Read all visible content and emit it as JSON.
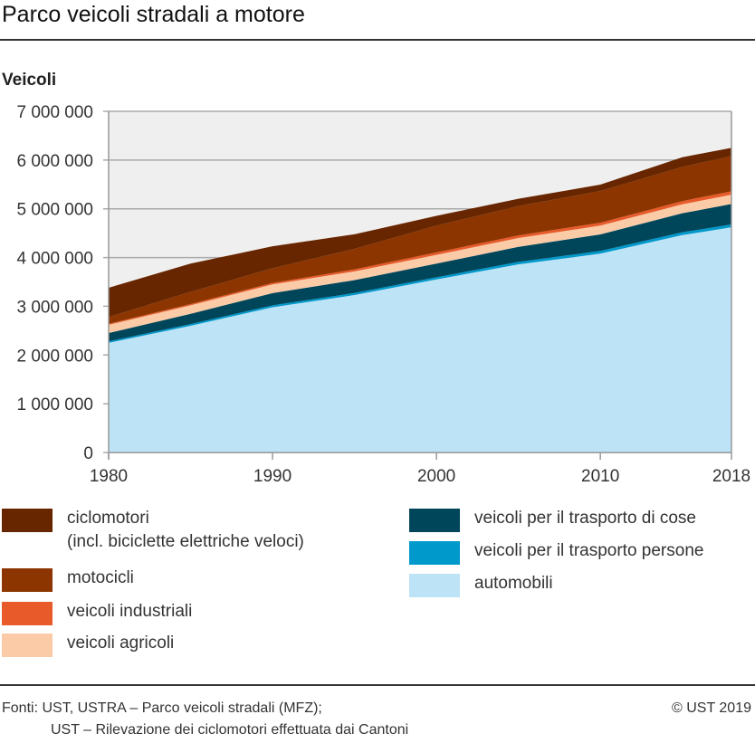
{
  "chart_data": {
    "type": "area",
    "stacked": true,
    "title": "Parco veicoli stradali a motore",
    "ylabel": "Veicoli",
    "xlabel": "",
    "ylim": [
      0,
      7000000
    ],
    "xlim": [
      1980,
      2018
    ],
    "yticks": [
      "0",
      "1 000 000",
      "2 000 000",
      "3 000 000",
      "4 000 000",
      "5 000 000",
      "6 000 000",
      "7 000 000"
    ],
    "xticks": [
      "1980",
      "1990",
      "2000",
      "2010",
      "2018"
    ],
    "grid": true,
    "x": [
      1980,
      1985,
      1990,
      1995,
      2000,
      2005,
      2010,
      2015,
      2018
    ],
    "series": [
      {
        "name": "automobili",
        "color": "#bde3f7",
        "values": [
          2250000,
          2600000,
          2980000,
          3230000,
          3550000,
          3860000,
          4080000,
          4460000,
          4620000
        ]
      },
      {
        "name": "veicoli per il trasporto persone",
        "color": "#0099cc",
        "values": [
          30000,
          35000,
          40000,
          42000,
          45000,
          50000,
          55000,
          58000,
          60000
        ]
      },
      {
        "name": "veicoli per il trasporto di cose",
        "color": "#00465a",
        "values": [
          170000,
          210000,
          250000,
          265000,
          280000,
          310000,
          340000,
          390000,
          420000
        ]
      },
      {
        "name": "veicoli agricoli",
        "color": "#fbcaa6",
        "values": [
          170000,
          175000,
          180000,
          180000,
          180000,
          180000,
          180000,
          185000,
          190000
        ]
      },
      {
        "name": "veicoli industriali",
        "color": "#e85a2a",
        "values": [
          20000,
          25000,
          30000,
          40000,
          50000,
          55000,
          60000,
          65000,
          70000
        ]
      },
      {
        "name": "motocicli",
        "color": "#8c3500",
        "values": [
          140000,
          250000,
          300000,
          420000,
          550000,
          600000,
          650000,
          700000,
          720000
        ]
      },
      {
        "name": "ciclomotori",
        "sublabel": "(incl. biciclette elettriche veloci)",
        "color": "#672600",
        "values": [
          600000,
          580000,
          450000,
          300000,
          200000,
          150000,
          130000,
          200000,
          170000
        ]
      }
    ]
  },
  "footer": {
    "source1": "Fonti: UST, USTRA – Parco veicoli stradali (MFZ);",
    "source2": "UST – Rilevazione dei ciclomotori effettuata dai Cantoni",
    "copyright": "© UST 2019"
  }
}
